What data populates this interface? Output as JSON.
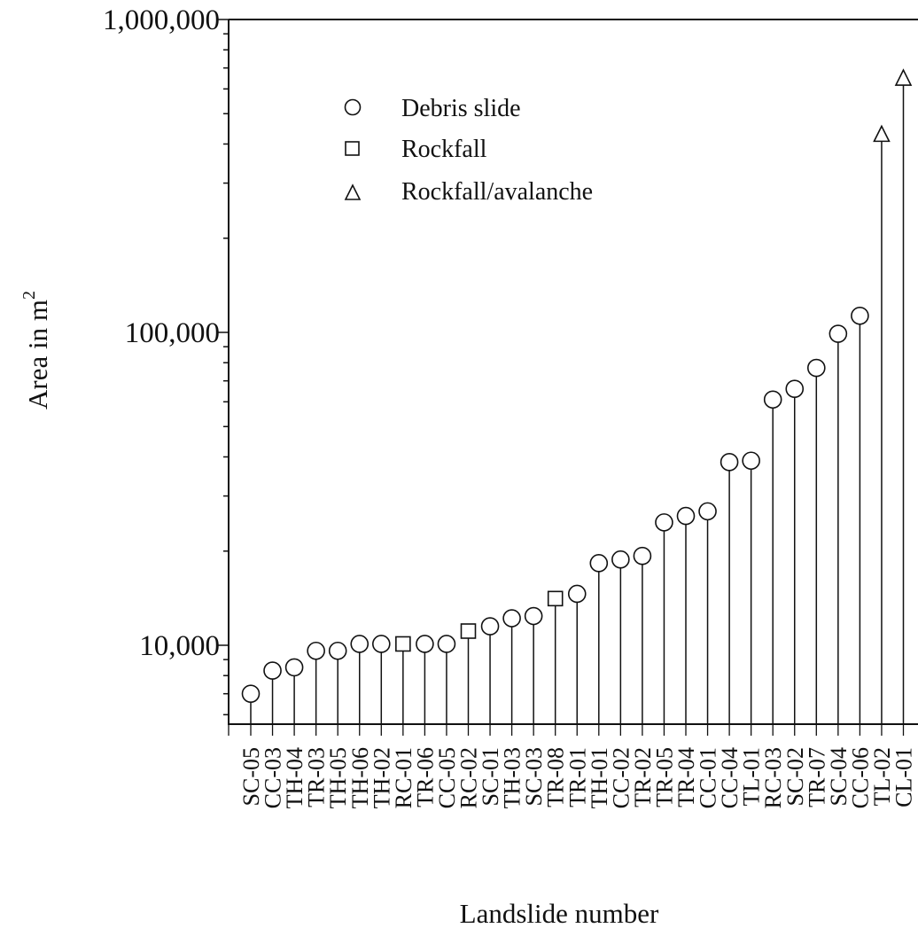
{
  "chart_data": {
    "type": "scatter",
    "style": "stem",
    "scale_y": "log",
    "ylim": [
      5600,
      1000000
    ],
    "ylabel": "Area in m",
    "ylabel_superscript": "2",
    "xlabel": "Landslide number",
    "y_tick_labels": [
      "10,000",
      "100,000",
      "1,000,000"
    ],
    "y_tick_values": [
      10000,
      100000,
      1000000
    ],
    "grid": false,
    "legend_position": "top-left",
    "legend": [
      {
        "marker": "circle",
        "label": "Debris slide"
      },
      {
        "marker": "square",
        "label": "Rockfall"
      },
      {
        "marker": "triangle",
        "label": "Rockfall/avalanche"
      }
    ],
    "categories": [
      "SC-05",
      "CC-03",
      "TH-04",
      "TR-03",
      "TH-05",
      "TH-06",
      "TH-02",
      "RC-01",
      "TR-06",
      "CC-05",
      "RC-02",
      "SC-01",
      "TH-03",
      "SC-03",
      "TR-08",
      "TR-01",
      "TH-01",
      "CC-02",
      "TR-02",
      "TR-05",
      "TR-04",
      "CC-01",
      "CC-04",
      "TL-01",
      "RC-03",
      "SC-02",
      "TR-07",
      "SC-04",
      "CC-06",
      "TL-02",
      "CL-01"
    ],
    "values": [
      7000,
      8300,
      8500,
      9600,
      9600,
      10100,
      10100,
      10100,
      10100,
      10100,
      11100,
      11500,
      12200,
      12400,
      14100,
      14600,
      18300,
      18800,
      19300,
      24700,
      25900,
      26800,
      38500,
      38900,
      61000,
      66000,
      77000,
      99000,
      113000,
      430000,
      650000
    ],
    "marker_types": [
      "circle",
      "circle",
      "circle",
      "circle",
      "circle",
      "circle",
      "circle",
      "square",
      "circle",
      "circle",
      "square",
      "circle",
      "circle",
      "circle",
      "square",
      "circle",
      "circle",
      "circle",
      "circle",
      "circle",
      "circle",
      "circle",
      "circle",
      "circle",
      "circle",
      "circle",
      "circle",
      "circle",
      "circle",
      "triangle",
      "triangle"
    ]
  }
}
